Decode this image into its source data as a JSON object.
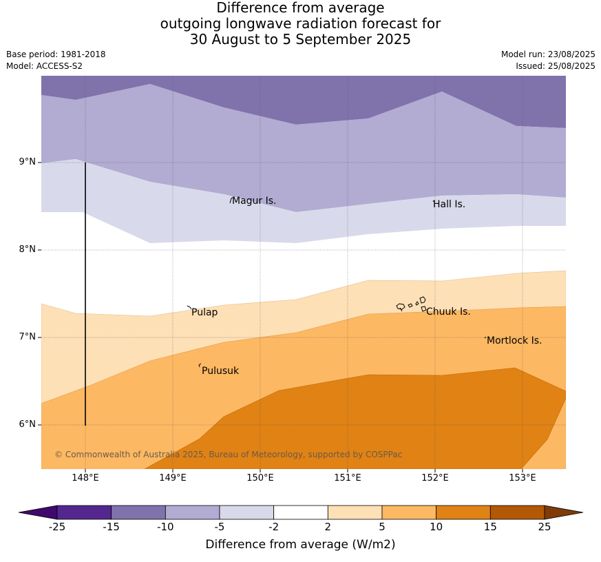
{
  "title_lines": [
    "Difference from average",
    "outgoing longwave radiation forecast for",
    "30 August to 5 September 2025"
  ],
  "meta_left": [
    "Base period: 1981-2018",
    "Model: ACCESS-S2"
  ],
  "meta_right": [
    "Model run: 23/08/2025",
    "Issued: 25/08/2025"
  ],
  "lat_labels": [
    "9°N",
    "8°N",
    "7°N",
    "6°N"
  ],
  "lon_labels": [
    "148°E",
    "149°E",
    "150°E",
    "151°E",
    "152°E",
    "153°E"
  ],
  "places": [
    {
      "name": "Magur Is."
    },
    {
      "name": "Hall Is."
    },
    {
      "name": "Pulap"
    },
    {
      "name": "Chuuk Is."
    },
    {
      "name": "Mortlock Is."
    },
    {
      "name": "Pulusuk"
    }
  ],
  "copyright": "© Commonwealth of Australia 2025, Bureau of Meteorology, supported by COSPPac",
  "colorbar": {
    "ticks": [
      "-25",
      "-15",
      "-10",
      "-5",
      "-2",
      "2",
      "5",
      "10",
      "15",
      "25"
    ],
    "colors": [
      "#3f0a6b",
      "#54278f",
      "#8073ac",
      "#b2abd2",
      "#d8daeb",
      "#ffffff",
      "#fee0b6",
      "#fdb863",
      "#e08214",
      "#b35806",
      "#7f3b08"
    ],
    "label": "Difference from average (W/m2)"
  }
}
